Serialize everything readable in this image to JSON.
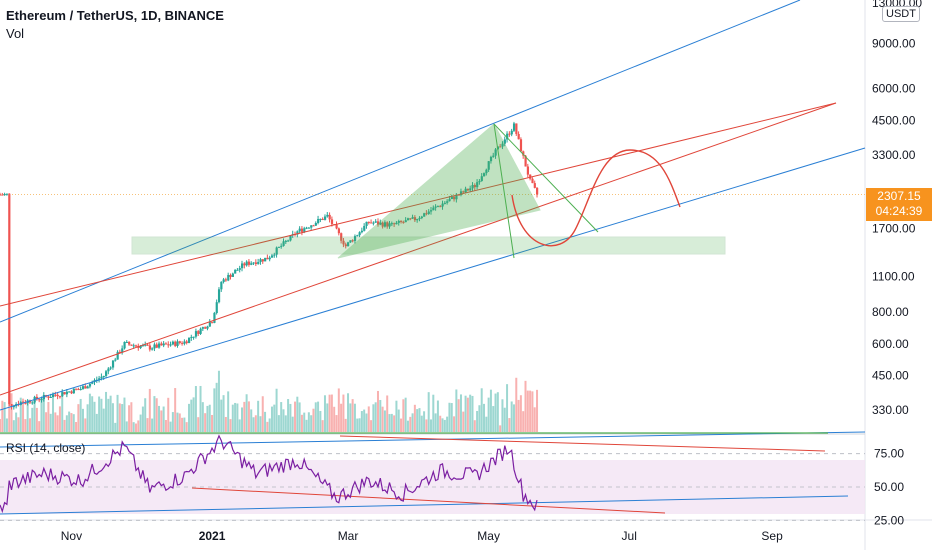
{
  "header": {
    "title": "Ethereum / TetherUS, 1D, BINANCE",
    "volume_label": "Vol",
    "rsi_label": "RSI (14, close)",
    "currency_box": "USDT"
  },
  "price_tag": {
    "price": "2307.15",
    "countdown": "04:24:39",
    "color": "#f7931e"
  },
  "colors": {
    "up": "#26a69a",
    "down": "#ef5350",
    "trend_blue": "#2a7fd4",
    "trend_red": "#e0463a",
    "triangle": "#4caf50",
    "rsi_line": "#7b1fa2",
    "rsi_band": "#f3e5f5"
  },
  "chart_data": {
    "type": "candlestick",
    "symbol": "ETHUSDT",
    "interval": "1D",
    "scale": "log",
    "y_ticks": [
      330,
      450,
      600,
      800,
      1100,
      1700,
      3300,
      4500,
      6000,
      9000,
      13000
    ],
    "y_tick_labels": [
      "330.00",
      "450.00",
      "600.00",
      "800.00",
      "1100.00",
      "1700.00",
      "3300.00",
      "4500.00",
      "6000.00",
      "9000.00",
      "13000.00"
    ],
    "x_labels": [
      "Nov",
      "2021",
      "Mar",
      "May",
      "Jul",
      "Sep"
    ],
    "last_price": 2307.15,
    "close_path": [
      [
        "2020-10-05",
        345
      ],
      [
        "2020-10-20",
        370
      ],
      [
        "2020-11-05",
        400
      ],
      [
        "2020-11-15",
        450
      ],
      [
        "2020-11-24",
        600
      ],
      [
        "2020-12-05",
        580
      ],
      [
        "2020-12-20",
        610
      ],
      [
        "2021-01-01",
        740
      ],
      [
        "2021-01-05",
        1050
      ],
      [
        "2021-01-15",
        1230
      ],
      [
        "2021-01-25",
        1300
      ],
      [
        "2021-02-07",
        1650
      ],
      [
        "2021-02-20",
        1900
      ],
      [
        "2021-02-28",
        1450
      ],
      [
        "2021-03-10",
        1800
      ],
      [
        "2021-03-20",
        1750
      ],
      [
        "2021-03-30",
        1850
      ],
      [
        "2021-04-10",
        2100
      ],
      [
        "2021-04-25",
        2500
      ],
      [
        "2021-05-05",
        3500
      ],
      [
        "2021-05-12",
        4300
      ],
      [
        "2021-05-19",
        2600
      ],
      [
        "2021-05-22",
        2307
      ]
    ],
    "rsi": {
      "levels": [
        75,
        50,
        25
      ],
      "tick_labels": [
        "75.00",
        "50.00",
        "25.00"
      ],
      "path": [
        [
          "2020-10-05",
          52
        ],
        [
          "2020-10-20",
          60
        ],
        [
          "2020-11-05",
          55
        ],
        [
          "2020-11-24",
          80
        ],
        [
          "2020-12-05",
          48
        ],
        [
          "2020-12-20",
          58
        ],
        [
          "2021-01-05",
          85
        ],
        [
          "2021-01-20",
          60
        ],
        [
          "2021-02-07",
          70
        ],
        [
          "2021-02-24",
          42
        ],
        [
          "2021-03-10",
          55
        ],
        [
          "2021-03-25",
          45
        ],
        [
          "2021-04-10",
          62
        ],
        [
          "2021-04-25",
          58
        ],
        [
          "2021-05-10",
          80
        ],
        [
          "2021-05-16",
          45
        ],
        [
          "2021-05-22",
          35
        ]
      ]
    }
  }
}
